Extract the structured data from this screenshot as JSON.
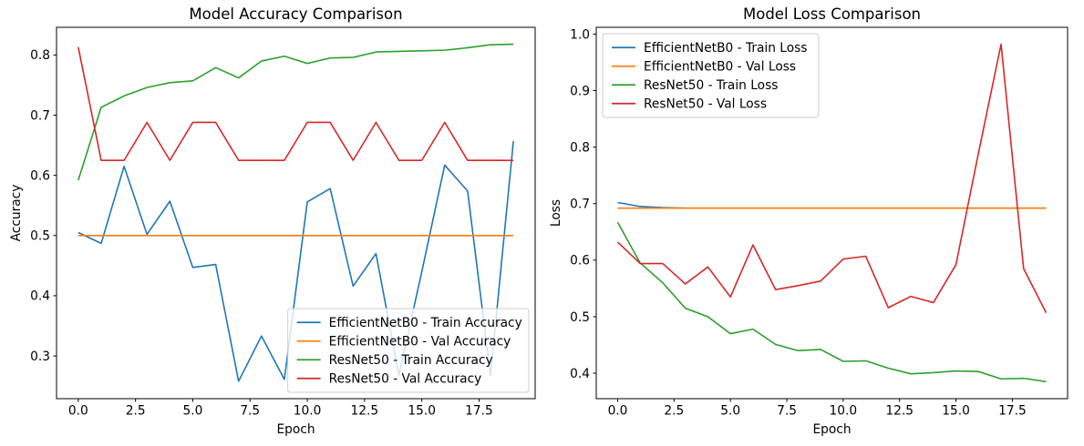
{
  "figure": {
    "background": "#ffffff",
    "spine_color": "#000000",
    "legend_border_color": "#cccccc",
    "legend_bg_color": "#ffffff"
  },
  "chart_data": [
    {
      "type": "line",
      "title": "Model Accuracy Comparison",
      "xlabel": "Epoch",
      "ylabel": "Accuracy",
      "grid": false,
      "legend_position": "lower right",
      "x": [
        0,
        1,
        2,
        3,
        4,
        5,
        6,
        7,
        8,
        9,
        10,
        11,
        12,
        13,
        14,
        15,
        16,
        17,
        18,
        19
      ],
      "xlim": [
        -0.95,
        19.95
      ],
      "ylim": [
        0.229,
        0.846
      ],
      "xticks": [
        0.0,
        2.5,
        5.0,
        7.5,
        10.0,
        12.5,
        15.0,
        17.5
      ],
      "yticks": [
        0.3,
        0.4,
        0.5,
        0.6,
        0.7,
        0.8
      ],
      "series": [
        {
          "name": "EfficientNetB0 - Train Accuracy",
          "color": "#1f77b4",
          "values": [
            0.505,
            0.487,
            0.615,
            0.502,
            0.557,
            0.447,
            0.452,
            0.258,
            0.333,
            0.261,
            0.556,
            0.578,
            0.416,
            0.47,
            0.268,
            0.44,
            0.617,
            0.574,
            0.268,
            0.657
          ]
        },
        {
          "name": "EfficientNetB0 - Val Accuracy",
          "color": "#ff7f0e",
          "values": [
            0.5,
            0.5,
            0.5,
            0.5,
            0.5,
            0.5,
            0.5,
            0.5,
            0.5,
            0.5,
            0.5,
            0.5,
            0.5,
            0.5,
            0.5,
            0.5,
            0.5,
            0.5,
            0.5,
            0.5
          ]
        },
        {
          "name": "ResNet50 - Train Accuracy",
          "color": "#2ca02c",
          "values": [
            0.592,
            0.713,
            0.732,
            0.746,
            0.754,
            0.757,
            0.779,
            0.762,
            0.79,
            0.798,
            0.786,
            0.795,
            0.796,
            0.805,
            0.806,
            0.807,
            0.808,
            0.812,
            0.817,
            0.818
          ]
        },
        {
          "name": "ResNet50 - Val Accuracy",
          "color": "#d62728",
          "values": [
            0.813,
            0.625,
            0.625,
            0.688,
            0.625,
            0.688,
            0.688,
            0.625,
            0.625,
            0.625,
            0.688,
            0.688,
            0.625,
            0.688,
            0.625,
            0.625,
            0.688,
            0.625,
            0.625,
            0.625
          ]
        }
      ]
    },
    {
      "type": "line",
      "title": "Model Loss Comparison",
      "xlabel": "Epoch",
      "ylabel": "Loss",
      "grid": false,
      "legend_position": "upper left",
      "x": [
        0,
        1,
        2,
        3,
        4,
        5,
        6,
        7,
        8,
        9,
        10,
        11,
        12,
        13,
        14,
        15,
        16,
        17,
        18,
        19
      ],
      "xlim": [
        -0.95,
        19.95
      ],
      "ylim": [
        0.355,
        1.012
      ],
      "xticks": [
        0.0,
        2.5,
        5.0,
        7.5,
        10.0,
        12.5,
        15.0,
        17.5
      ],
      "yticks": [
        0.4,
        0.5,
        0.6,
        0.7,
        0.8,
        0.9,
        1.0
      ],
      "series": [
        {
          "name": "EfficientNetB0 - Train Loss",
          "color": "#1f77b4",
          "values": [
            0.702,
            0.695,
            0.693,
            0.692,
            0.692,
            0.692,
            0.692,
            0.692,
            0.692,
            0.692,
            0.692,
            0.692,
            0.692,
            0.692,
            0.692,
            0.692,
            0.692,
            0.692,
            0.692,
            0.692
          ]
        },
        {
          "name": "EfficientNetB0 - Val Loss",
          "color": "#ff7f0e",
          "values": [
            0.692,
            0.692,
            0.692,
            0.692,
            0.692,
            0.692,
            0.692,
            0.692,
            0.692,
            0.692,
            0.692,
            0.692,
            0.692,
            0.692,
            0.692,
            0.692,
            0.692,
            0.692,
            0.692,
            0.692
          ]
        },
        {
          "name": "ResNet50 - Train Loss",
          "color": "#2ca02c",
          "values": [
            0.667,
            0.595,
            0.56,
            0.515,
            0.5,
            0.47,
            0.478,
            0.451,
            0.44,
            0.442,
            0.421,
            0.422,
            0.409,
            0.399,
            0.401,
            0.404,
            0.403,
            0.39,
            0.391,
            0.385
          ]
        },
        {
          "name": "ResNet50 - Val Loss",
          "color": "#d62728",
          "values": [
            0.632,
            0.594,
            0.594,
            0.558,
            0.588,
            0.535,
            0.627,
            0.548,
            0.555,
            0.563,
            0.602,
            0.607,
            0.516,
            0.536,
            0.525,
            0.592,
            0.79,
            0.982,
            0.585,
            0.507
          ]
        }
      ]
    }
  ]
}
